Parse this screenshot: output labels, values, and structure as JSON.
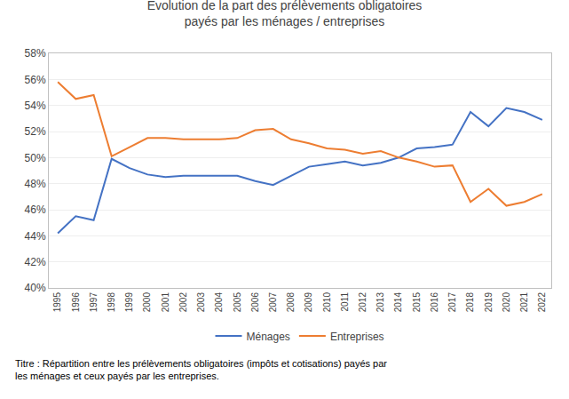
{
  "chart_data": {
    "type": "line",
    "title": "Evolution de la part des prélèvements obligatoires\npayés par les ménages / entreprises",
    "subtitle": "Titre : Répartition entre les prélèvements obligatoires (impôts et cotisations) payés par\nles ménages et ceux payés par les entreprises.",
    "x": [
      1995,
      1996,
      1997,
      1998,
      1999,
      2000,
      2001,
      2002,
      2003,
      2004,
      2005,
      2006,
      2007,
      2008,
      2009,
      2010,
      2011,
      2012,
      2013,
      2014,
      2015,
      2016,
      2017,
      2018,
      2019,
      2020,
      2021,
      2022
    ],
    "series": [
      {
        "name": "Ménages",
        "color": "#4472C4",
        "values": [
          44.2,
          45.5,
          45.2,
          49.9,
          49.2,
          48.7,
          48.5,
          48.6,
          48.6,
          48.6,
          48.6,
          48.2,
          47.9,
          48.6,
          49.3,
          49.5,
          49.7,
          49.4,
          49.6,
          50.0,
          50.7,
          50.8,
          51.0,
          53.5,
          52.4,
          53.8,
          53.5,
          52.9
        ]
      },
      {
        "name": "Entreprises",
        "color": "#ED7D31",
        "values": [
          55.8,
          54.5,
          54.8,
          50.1,
          50.8,
          51.5,
          51.5,
          51.4,
          51.4,
          51.4,
          51.5,
          52.1,
          52.2,
          51.4,
          51.1,
          50.7,
          50.6,
          50.3,
          50.5,
          50.0,
          49.7,
          49.3,
          49.4,
          46.6,
          47.6,
          46.3,
          46.6,
          47.2
        ]
      }
    ],
    "xlim": [
      1994.5,
      2022.5
    ],
    "xticks": [
      1995,
      1996,
      1997,
      1998,
      1999,
      2000,
      2001,
      2002,
      2003,
      2004,
      2005,
      2006,
      2007,
      2008,
      2009,
      2010,
      2011,
      2012,
      2013,
      2014,
      2015,
      2016,
      2017,
      2018,
      2019,
      2020,
      2021,
      2022
    ],
    "ylim": [
      40,
      58
    ],
    "yticks": [
      {
        "value": 40,
        "label": "40%"
      },
      {
        "value": 42,
        "label": "42%"
      },
      {
        "value": 44,
        "label": "44%"
      },
      {
        "value": 46,
        "label": "46%"
      },
      {
        "value": 48,
        "label": "48%"
      },
      {
        "value": 50,
        "label": "50%"
      },
      {
        "value": 52,
        "label": "52%"
      },
      {
        "value": 54,
        "label": "54%"
      },
      {
        "value": 56,
        "label": "56%"
      },
      {
        "value": 58,
        "label": "58%"
      }
    ],
    "grid": true,
    "legend": "bottom"
  }
}
